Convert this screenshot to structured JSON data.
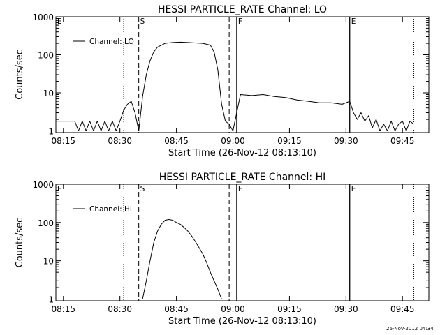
{
  "chart_data": [
    {
      "type": "line",
      "title": "HESSI PARTICLE_RATE Channel: LO",
      "xlabel": "Start Time (26-Nov-12 08:13:10)",
      "ylabel": "Counts/sec",
      "yscale": "log",
      "ylim": [
        0.9,
        1000
      ],
      "xlim": [
        "08:13",
        "09:52"
      ],
      "xticks": [
        "08:15",
        "08:30",
        "08:45",
        "09:00",
        "09:15",
        "09:30",
        "09:45"
      ],
      "yticks": [
        "1",
        "10",
        "100",
        "1000"
      ],
      "legend": {
        "position": "top-left",
        "entries": [
          "Channel: LO"
        ]
      },
      "markers": [
        {
          "label": "S",
          "time": "08:35",
          "style": "dashed"
        },
        {
          "label": "F",
          "time": "09:01",
          "style": "solid"
        },
        {
          "label": "E",
          "time": "09:31",
          "style": "solid"
        }
      ],
      "dashed_lines": [
        "08:35",
        "08:59"
      ],
      "dotted_lines": [
        "08:31",
        "09:48"
      ],
      "series": [
        {
          "name": "Channel: LO",
          "x": [
            "08:13",
            "08:18",
            "08:19",
            "08:20",
            "08:21",
            "08:22",
            "08:23",
            "08:24",
            "08:25",
            "08:26",
            "08:27",
            "08:28",
            "08:29",
            "08:30",
            "08:31",
            "08:32",
            "08:33",
            "08:34",
            "08:35",
            "08:36",
            "08:37",
            "08:38",
            "08:39",
            "08:40",
            "08:42",
            "08:44",
            "08:46",
            "08:48",
            "08:50",
            "08:52",
            "08:54",
            "08:55",
            "08:56",
            "08:57",
            "08:58",
            "08:59",
            "09:00",
            "09:01",
            "09:02",
            "09:05",
            "09:08",
            "09:11",
            "09:14",
            "09:17",
            "09:20",
            "09:23",
            "09:26",
            "09:29",
            "09:31",
            "09:32",
            "09:33",
            "09:34",
            "09:35",
            "09:36",
            "09:37",
            "09:38",
            "09:39",
            "09:40",
            "09:41",
            "09:42",
            "09:43",
            "09:44",
            "09:45",
            "09:46",
            "09:47",
            "09:48"
          ],
          "values": [
            1.8,
            1.8,
            1.0,
            1.8,
            1.0,
            1.8,
            1.0,
            1.8,
            1.0,
            1.8,
            1.0,
            1.8,
            1.0,
            1.8,
            3.5,
            5.0,
            6.0,
            3.0,
            1.0,
            8.0,
            30,
            70,
            120,
            160,
            200,
            210,
            215,
            210,
            205,
            200,
            180,
            120,
            40,
            5,
            1.8,
            1.5,
            1.0,
            3.0,
            9.0,
            8.5,
            9.0,
            8.0,
            7.5,
            6.5,
            6.0,
            5.5,
            5.5,
            5.0,
            6.0,
            3.0,
            2.0,
            3.0,
            1.8,
            2.5,
            1.2,
            2.0,
            1.0,
            1.5,
            1.0,
            1.8,
            1.0,
            1.5,
            1.8,
            1.0,
            1.8,
            1.5
          ]
        }
      ]
    },
    {
      "type": "line",
      "title": "HESSI PARTICLE_RATE Channel: HI",
      "xlabel": "Start Time (26-Nov-12 08:13:10)",
      "ylabel": "Counts/sec",
      "yscale": "log",
      "ylim": [
        0.9,
        1000
      ],
      "xlim": [
        "08:13",
        "09:52"
      ],
      "xticks": [
        "08:15",
        "08:30",
        "08:45",
        "09:00",
        "09:15",
        "09:30",
        "09:45"
      ],
      "yticks": [
        "1",
        "10",
        "100",
        "1000"
      ],
      "legend": {
        "position": "top-left",
        "entries": [
          "Channel: HI"
        ]
      },
      "markers": [
        {
          "label": "S",
          "time": "08:35",
          "style": "dashed"
        },
        {
          "label": "F",
          "time": "09:01",
          "style": "solid"
        },
        {
          "label": "E",
          "time": "09:31",
          "style": "solid"
        }
      ],
      "dashed_lines": [
        "08:35",
        "08:59"
      ],
      "dotted_lines": [
        "08:31",
        "09:48"
      ],
      "series": [
        {
          "name": "Channel: HI",
          "x": [
            "08:36",
            "08:37",
            "08:38",
            "08:39",
            "08:40",
            "08:41",
            "08:42",
            "08:43",
            "08:44",
            "08:45",
            "08:46",
            "08:47",
            "08:48",
            "08:49",
            "08:50",
            "08:51",
            "08:52",
            "08:53",
            "08:54",
            "08:55",
            "08:56",
            "08:57"
          ],
          "values": [
            1.0,
            3.0,
            10,
            30,
            60,
            90,
            115,
            120,
            115,
            100,
            90,
            75,
            60,
            45,
            32,
            22,
            15,
            9,
            5,
            3,
            1.8,
            1.0
          ]
        }
      ]
    }
  ],
  "footer": {
    "timestamp": "26-Nov-2012 04:34"
  },
  "colors": {
    "line": "#000000",
    "background": "#ffffff"
  }
}
